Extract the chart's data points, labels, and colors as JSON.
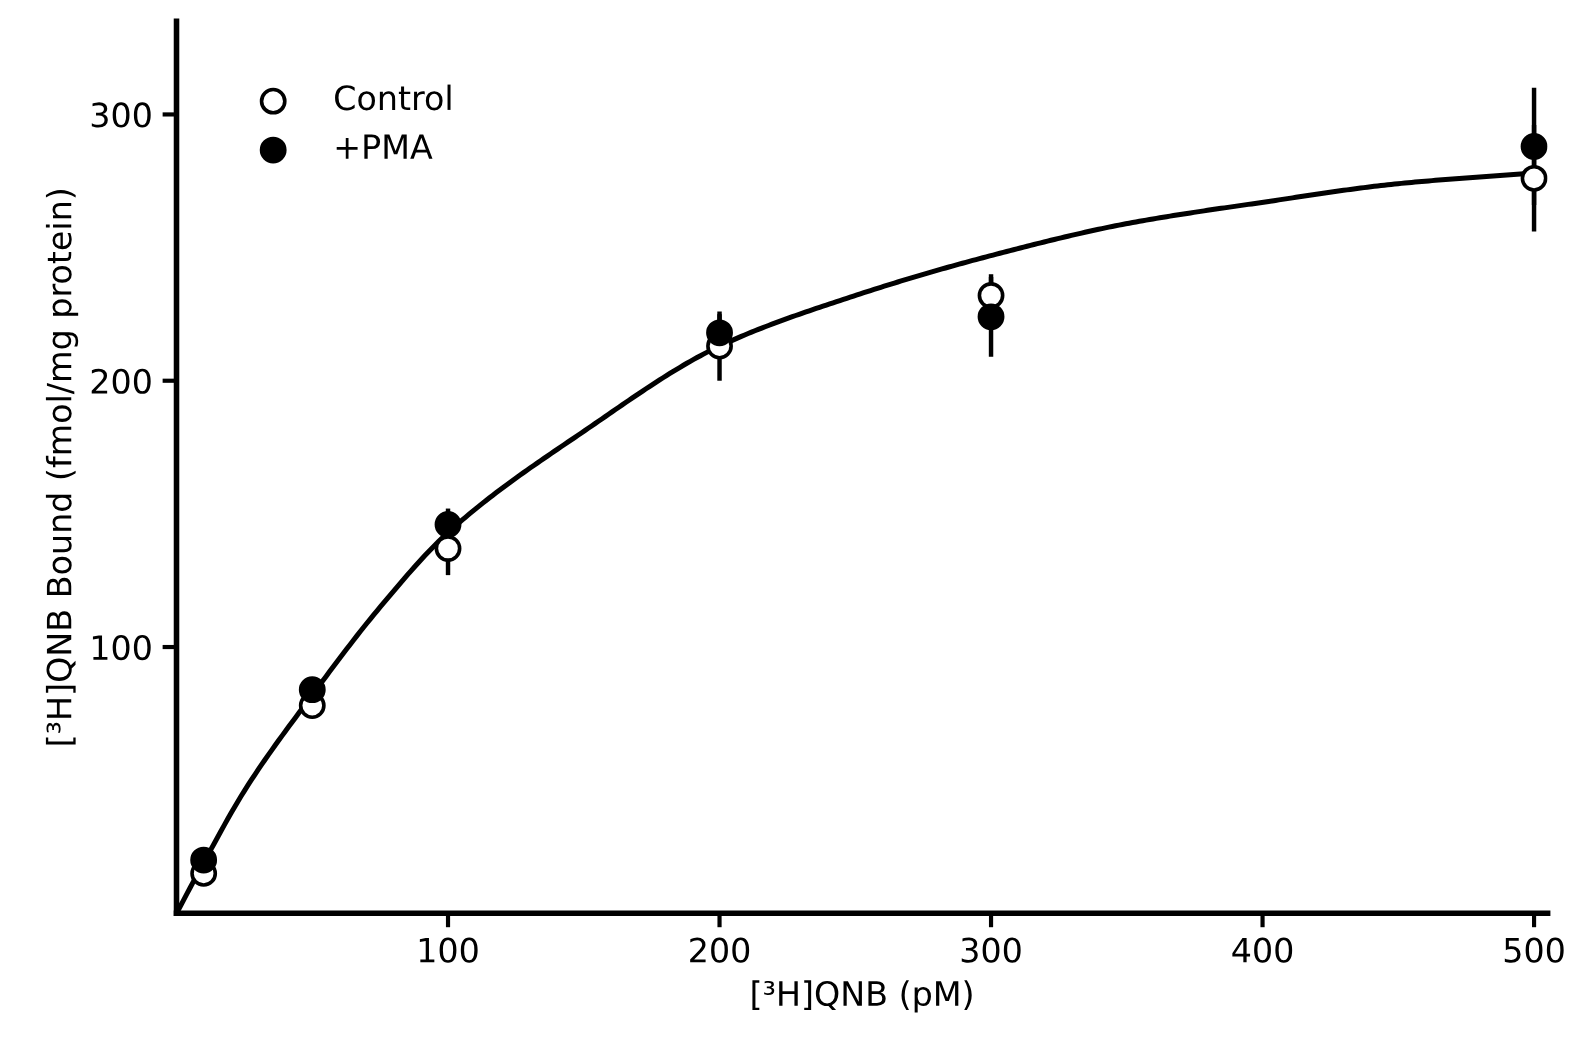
{
  "chart_data": {
    "type": "scatter",
    "xlabel": "[³H]QNB (pM)",
    "ylabel": "[³H]QNB Bound (fmol/mg protein)",
    "xlim": [
      0,
      505
    ],
    "ylim": [
      0,
      335
    ],
    "xticks": [
      100,
      200,
      300,
      400,
      500
    ],
    "yticks": [
      100,
      200,
      300
    ],
    "grid": false,
    "legend": "top left",
    "series": [
      {
        "name": "Control",
        "marker": "circle",
        "color": "#ffffff",
        "x": [
          10,
          50,
          100,
          200,
          300,
          500
        ],
        "values": [
          15,
          78,
          137,
          213,
          232,
          276
        ],
        "errors": [
          null,
          null,
          10,
          13,
          8,
          20
        ]
      },
      {
        "name": "+PMA",
        "marker": "circle",
        "color": "#000000",
        "x": [
          10,
          50,
          100,
          200,
          300,
          500
        ],
        "values": [
          20,
          84,
          146,
          218,
          224,
          288
        ],
        "errors": [
          null,
          null,
          6,
          7,
          15,
          22
        ]
      },
      {
        "type": "line",
        "color": "#000000",
        "x": [
          0,
          10,
          25,
          50,
          75,
          100,
          150,
          200,
          250,
          300,
          350,
          400,
          450,
          500
        ],
        "values": [
          0,
          19,
          46,
          82,
          115,
          143,
          181,
          213,
          232,
          247,
          259,
          267,
          274,
          278
        ]
      }
    ]
  }
}
